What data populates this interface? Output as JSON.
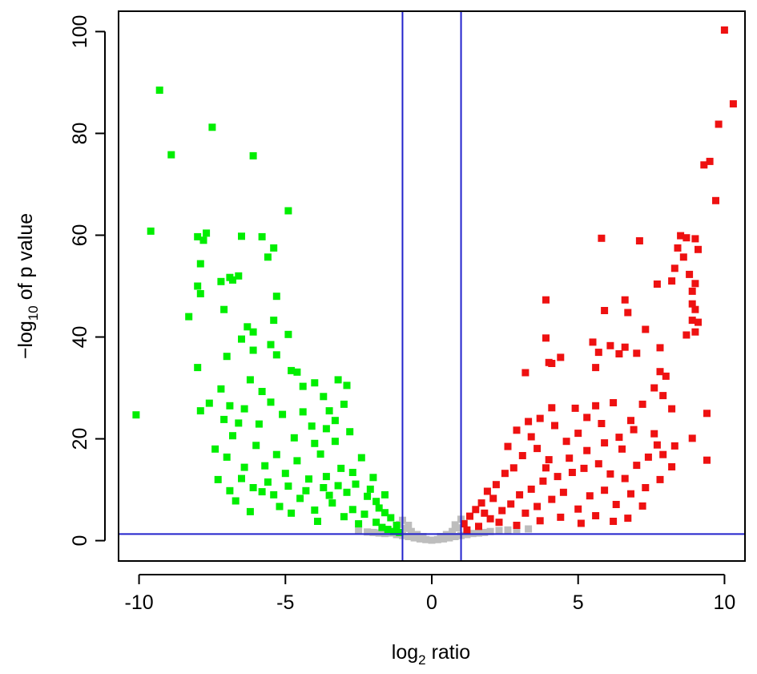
{
  "chart_data": {
    "type": "scatter",
    "title": "",
    "xlabel": "log2 ratio",
    "ylabel": "−log10 of p value",
    "xlabel_parts": {
      "base": "log",
      "sub": "2",
      "rest": " ratio"
    },
    "ylabel_parts": {
      "prefix": "−log",
      "sub": "10",
      "rest": " of p value"
    },
    "xlim": [
      -10.7,
      10.7
    ],
    "ylim": [
      -4,
      104
    ],
    "x_ticks": [
      -10,
      -5,
      0,
      5,
      10
    ],
    "x_tick_labels": [
      "-10",
      "-5",
      "0",
      "5",
      "10"
    ],
    "y_ticks": [
      0,
      20,
      40,
      60,
      80,
      100
    ],
    "y_tick_labels": [
      "0",
      "20",
      "40",
      "60",
      "80",
      "100"
    ],
    "grid": false,
    "legend": "none",
    "threshold_lines": {
      "vertical": [
        -1,
        1
      ],
      "horizontal": [
        1.3
      ],
      "color": "#2222cc"
    },
    "colors": {
      "down": "#00ee00",
      "up": "#ee1111",
      "not_significant": "#bdbdbd"
    },
    "series": [
      {
        "category": "down",
        "color": "#00ee00",
        "points": [
          [
            -9.3,
            88.5
          ],
          [
            -7.5,
            81.2
          ],
          [
            -8.9,
            75.8
          ],
          [
            -6.1,
            75.6
          ],
          [
            -4.9,
            64.8
          ],
          [
            -9.6,
            60.8
          ],
          [
            -7.7,
            60.4
          ],
          [
            -8.0,
            59.7
          ],
          [
            -6.5,
            59.8
          ],
          [
            -5.8,
            59.7
          ],
          [
            -7.8,
            59.0
          ],
          [
            -5.4,
            57.5
          ],
          [
            -5.6,
            55.7
          ],
          [
            -7.9,
            54.4
          ],
          [
            -6.6,
            52.0
          ],
          [
            -6.9,
            51.7
          ],
          [
            -7.2,
            50.9
          ],
          [
            -6.8,
            51.2
          ],
          [
            -8.0,
            50.0
          ],
          [
            -7.9,
            48.5
          ],
          [
            -5.3,
            48.0
          ],
          [
            -7.1,
            45.4
          ],
          [
            -8.3,
            44.0
          ],
          [
            -5.4,
            43.3
          ],
          [
            -6.3,
            42.0
          ],
          [
            -6.1,
            41.0
          ],
          [
            -4.9,
            40.5
          ],
          [
            -6.5,
            39.6
          ],
          [
            -5.5,
            38.5
          ],
          [
            -6.1,
            37.4
          ],
          [
            -7.0,
            36.2
          ],
          [
            -5.3,
            36.5
          ],
          [
            -8.0,
            34.0
          ],
          [
            -4.8,
            33.4
          ],
          [
            -4.6,
            33.1
          ],
          [
            -10.1,
            24.7
          ],
          [
            -7.9,
            25.5
          ],
          [
            -7.6,
            27.0
          ],
          [
            -7.2,
            29.8
          ],
          [
            -6.9,
            26.5
          ],
          [
            -6.6,
            23.1
          ],
          [
            -6.2,
            31.6
          ],
          [
            -5.8,
            29.3
          ],
          [
            -5.5,
            27.2
          ],
          [
            -5.1,
            24.8
          ],
          [
            -4.4,
            30.3
          ],
          [
            -4.0,
            31.0
          ],
          [
            -3.7,
            28.3
          ],
          [
            -3.5,
            25.5
          ],
          [
            -3.2,
            31.6
          ],
          [
            -2.9,
            30.5
          ],
          [
            -3.0,
            26.8
          ],
          [
            -7.4,
            18.0
          ],
          [
            -7.0,
            16.4
          ],
          [
            -6.8,
            20.6
          ],
          [
            -6.4,
            14.4
          ],
          [
            -6.0,
            18.7
          ],
          [
            -5.6,
            11.5
          ],
          [
            -5.3,
            16.9
          ],
          [
            -5.0,
            13.2
          ],
          [
            -4.7,
            20.2
          ],
          [
            -4.3,
            9.8
          ],
          [
            -4.1,
            22.5
          ],
          [
            -3.8,
            17.0
          ],
          [
            -3.6,
            12.6
          ],
          [
            -3.3,
            19.5
          ],
          [
            -3.1,
            14.2
          ],
          [
            -2.8,
            21.4
          ],
          [
            -2.6,
            11.1
          ],
          [
            -2.4,
            16.3
          ],
          [
            -2.2,
            8.7
          ],
          [
            -2.0,
            12.4
          ],
          [
            -1.8,
            6.4
          ],
          [
            -1.6,
            9.0
          ],
          [
            -1.4,
            4.5
          ],
          [
            -1.2,
            3.0
          ],
          [
            -6.7,
            7.8
          ],
          [
            -6.2,
            5.7
          ],
          [
            -5.8,
            9.6
          ],
          [
            -5.2,
            6.7
          ],
          [
            -4.8,
            5.4
          ],
          [
            -4.5,
            8.3
          ],
          [
            -4.0,
            6.0
          ],
          [
            -3.9,
            3.8
          ],
          [
            -3.4,
            7.4
          ],
          [
            -3.0,
            4.7
          ],
          [
            -2.7,
            6.1
          ],
          [
            -2.5,
            3.3
          ],
          [
            -2.3,
            5.2
          ],
          [
            -1.9,
            3.6
          ],
          [
            -1.7,
            2.6
          ],
          [
            -1.5,
            2.2
          ],
          [
            -1.3,
            1.8
          ],
          [
            -1.1,
            1.6
          ],
          [
            -7.3,
            12.0
          ],
          [
            -6.9,
            9.8
          ],
          [
            -6.5,
            12.2
          ],
          [
            -6.1,
            10.4
          ],
          [
            -5.7,
            14.7
          ],
          [
            -5.4,
            9.0
          ],
          [
            -4.9,
            10.7
          ],
          [
            -4.6,
            15.7
          ],
          [
            -4.2,
            12.1
          ],
          [
            -3.7,
            10.4
          ],
          [
            -3.5,
            8.9
          ],
          [
            -3.2,
            10.8
          ],
          [
            -2.9,
            9.5
          ],
          [
            -2.7,
            13.4
          ],
          [
            -2.1,
            10.1
          ],
          [
            -1.9,
            7.7
          ],
          [
            -1.6,
            5.5
          ],
          [
            -4.4,
            25.3
          ],
          [
            -4.0,
            19.1
          ],
          [
            -3.6,
            22.0
          ],
          [
            -3.3,
            23.6
          ],
          [
            -5.9,
            22.9
          ],
          [
            -6.4,
            25.9
          ],
          [
            -7.1,
            23.8
          ]
        ]
      },
      {
        "category": "up",
        "color": "#ee1111",
        "points": [
          [
            10.0,
            100.3
          ],
          [
            10.3,
            85.8
          ],
          [
            9.8,
            81.8
          ],
          [
            9.5,
            74.5
          ],
          [
            9.3,
            73.8
          ],
          [
            9.7,
            66.8
          ],
          [
            8.5,
            59.9
          ],
          [
            8.7,
            59.5
          ],
          [
            9.0,
            59.3
          ],
          [
            5.8,
            59.4
          ],
          [
            7.1,
            58.9
          ],
          [
            8.4,
            57.5
          ],
          [
            9.1,
            57.2
          ],
          [
            8.6,
            55.7
          ],
          [
            8.3,
            53.5
          ],
          [
            8.8,
            52.3
          ],
          [
            8.2,
            51.0
          ],
          [
            7.7,
            50.4
          ],
          [
            9.0,
            50.5
          ],
          [
            8.9,
            49.0
          ],
          [
            6.6,
            47.3
          ],
          [
            3.9,
            47.3
          ],
          [
            8.9,
            46.5
          ],
          [
            5.9,
            45.2
          ],
          [
            6.7,
            44.8
          ],
          [
            9.0,
            45.4
          ],
          [
            8.9,
            43.3
          ],
          [
            9.1,
            42.9
          ],
          [
            7.3,
            41.5
          ],
          [
            9.0,
            41.0
          ],
          [
            8.7,
            40.4
          ],
          [
            3.9,
            39.8
          ],
          [
            5.5,
            39.0
          ],
          [
            6.1,
            38.3
          ],
          [
            6.6,
            38.0
          ],
          [
            7.8,
            37.9
          ],
          [
            5.7,
            37.0
          ],
          [
            6.4,
            36.7
          ],
          [
            7.0,
            36.8
          ],
          [
            4.4,
            36.0
          ],
          [
            4.0,
            35.0
          ],
          [
            4.1,
            34.8
          ],
          [
            5.6,
            34.0
          ],
          [
            3.2,
            33.0
          ],
          [
            7.8,
            33.2
          ],
          [
            8.0,
            32.3
          ],
          [
            9.4,
            25.0
          ],
          [
            9.4,
            15.8
          ],
          [
            7.9,
            16.9
          ],
          [
            8.3,
            18.6
          ],
          [
            8.9,
            20.1
          ],
          [
            7.6,
            30.0
          ],
          [
            7.9,
            28.5
          ],
          [
            8.2,
            25.9
          ],
          [
            7.2,
            26.8
          ],
          [
            6.8,
            23.6
          ],
          [
            6.2,
            27.1
          ],
          [
            5.6,
            26.5
          ],
          [
            5.3,
            24.2
          ],
          [
            4.9,
            26.0
          ],
          [
            4.1,
            26.1
          ],
          [
            3.7,
            24.0
          ],
          [
            3.3,
            23.4
          ],
          [
            2.9,
            21.7
          ],
          [
            6.4,
            20.3
          ],
          [
            6.9,
            21.8
          ],
          [
            7.6,
            21.0
          ],
          [
            5.9,
            19.2
          ],
          [
            5.3,
            17.7
          ],
          [
            4.6,
            19.5
          ],
          [
            4.0,
            15.9
          ],
          [
            3.6,
            18.1
          ],
          [
            3.1,
            16.7
          ],
          [
            2.8,
            14.3
          ],
          [
            2.5,
            13.2
          ],
          [
            2.2,
            11.0
          ],
          [
            1.9,
            9.7
          ],
          [
            1.7,
            7.4
          ],
          [
            1.5,
            6.1
          ],
          [
            1.3,
            4.8
          ],
          [
            1.1,
            3.3
          ],
          [
            1.2,
            2.1
          ],
          [
            1.6,
            2.8
          ],
          [
            2.0,
            4.3
          ],
          [
            2.4,
            5.9
          ],
          [
            2.7,
            7.2
          ],
          [
            3.0,
            9.0
          ],
          [
            3.4,
            10.1
          ],
          [
            3.8,
            11.7
          ],
          [
            4.3,
            12.6
          ],
          [
            4.8,
            13.4
          ],
          [
            5.2,
            14.2
          ],
          [
            5.7,
            15.1
          ],
          [
            6.1,
            13.1
          ],
          [
            6.6,
            12.2
          ],
          [
            7.0,
            14.8
          ],
          [
            7.4,
            16.4
          ],
          [
            7.7,
            18.8
          ],
          [
            3.2,
            5.4
          ],
          [
            3.6,
            6.7
          ],
          [
            4.1,
            8.1
          ],
          [
            4.5,
            9.5
          ],
          [
            5.0,
            6.2
          ],
          [
            5.4,
            8.8
          ],
          [
            5.9,
            9.9
          ],
          [
            6.3,
            7.1
          ],
          [
            6.8,
            9.2
          ],
          [
            7.3,
            10.4
          ],
          [
            7.8,
            12.0
          ],
          [
            8.2,
            14.5
          ],
          [
            2.3,
            3.6
          ],
          [
            2.9,
            3.0
          ],
          [
            3.7,
            3.9
          ],
          [
            4.4,
            4.6
          ],
          [
            5.1,
            3.4
          ],
          [
            5.6,
            4.9
          ],
          [
            6.2,
            3.8
          ],
          [
            6.7,
            4.4
          ],
          [
            7.2,
            6.8
          ],
          [
            2.6,
            18.5
          ],
          [
            3.4,
            20.4
          ],
          [
            4.2,
            22.6
          ],
          [
            5.0,
            21.1
          ],
          [
            5.8,
            23.0
          ],
          [
            6.5,
            18.0
          ],
          [
            3.9,
            14.3
          ],
          [
            4.7,
            16.2
          ],
          [
            2.1,
            8.3
          ],
          [
            1.8,
            5.4
          ]
        ]
      },
      {
        "category": "not_significant",
        "color": "#bdbdbd",
        "points": [
          [
            -2.5,
            1.9
          ],
          [
            -2.2,
            1.7
          ],
          [
            -2.0,
            1.6
          ],
          [
            -1.8,
            1.5
          ],
          [
            -1.6,
            1.4
          ],
          [
            -1.4,
            1.5
          ],
          [
            -1.2,
            1.2
          ],
          [
            -1.0,
            1.0
          ],
          [
            -0.8,
            0.8
          ],
          [
            -0.6,
            0.55
          ],
          [
            -0.4,
            0.35
          ],
          [
            -0.2,
            0.2
          ],
          [
            0.0,
            0.1
          ],
          [
            0.2,
            0.2
          ],
          [
            0.4,
            0.35
          ],
          [
            0.6,
            0.55
          ],
          [
            0.8,
            0.8
          ],
          [
            1.0,
            1.0
          ],
          [
            1.2,
            1.2
          ],
          [
            1.4,
            1.4
          ],
          [
            1.6,
            1.5
          ],
          [
            1.8,
            1.6
          ],
          [
            2.0,
            1.8
          ],
          [
            2.3,
            2.0
          ],
          [
            2.6,
            2.1
          ],
          [
            2.9,
            2.2
          ],
          [
            3.3,
            2.3
          ],
          [
            -0.9,
            2.4
          ],
          [
            -0.7,
            1.8
          ],
          [
            -0.5,
            1.2
          ],
          [
            -0.3,
            0.8
          ],
          [
            0.3,
            0.8
          ],
          [
            0.5,
            1.2
          ],
          [
            0.7,
            1.8
          ],
          [
            0.9,
            2.5
          ],
          [
            -1.1,
            3.2
          ],
          [
            1.1,
            3.4
          ],
          [
            -0.8,
            3.0
          ],
          [
            0.8,
            3.1
          ],
          [
            -1.0,
            4.0
          ],
          [
            1.0,
            4.2
          ]
        ]
      }
    ]
  }
}
